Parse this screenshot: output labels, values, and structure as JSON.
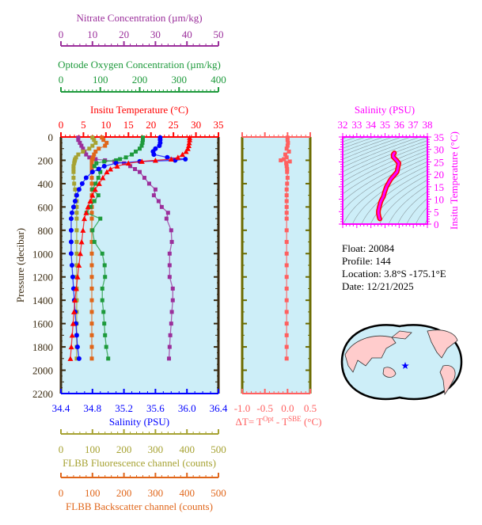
{
  "chart_data": [
    {
      "type": "line",
      "title": "",
      "ylabel": "Pressure (decibar)",
      "ylim": [
        2200,
        0
      ],
      "yticks": [
        0,
        200,
        400,
        600,
        800,
        1000,
        1200,
        1400,
        1600,
        1800,
        2000,
        2200
      ],
      "pressure": [
        5,
        25,
        50,
        75,
        100,
        125,
        150,
        175,
        190,
        200,
        210,
        225,
        250,
        275,
        300,
        350,
        400,
        450,
        500,
        550,
        600,
        650,
        700,
        800,
        900,
        1000,
        1100,
        1200,
        1300,
        1400,
        1500,
        1600,
        1700,
        1800,
        1900
      ],
      "axes": {
        "temperature": {
          "label": "Insitu Temperature (°C)",
          "range": [
            0,
            35
          ],
          "ticks": [
            0,
            5,
            10,
            15,
            20,
            25,
            30,
            35
          ],
          "color": "#ff0000"
        },
        "salinity": {
          "label": "Salinity (PSU)",
          "range": [
            34.4,
            36.4
          ],
          "ticks": [
            "34.4",
            "34.8",
            "35.2",
            "35.6",
            "36.0",
            "36.4"
          ],
          "color": "#0000ff"
        },
        "oxygen": {
          "label": "Optode Oxygen Concentration (µm/kg)",
          "range": [
            0,
            400
          ],
          "ticks": [
            0,
            100,
            200,
            300,
            400
          ],
          "color": "#1e9a3c"
        },
        "nitrate": {
          "label": "Nitrate Concentration (µm/kg)",
          "range": [
            0,
            50
          ],
          "ticks": [
            0,
            10,
            20,
            30,
            40,
            50
          ],
          "color": "#9b2f9b"
        },
        "fluorescence": {
          "label": "FLBB Fluorescence channel (counts)",
          "range": [
            0,
            500
          ],
          "ticks": [
            0,
            100,
            200,
            300,
            400,
            500
          ],
          "color": "#a6a232"
        },
        "backscatter": {
          "label": "FLBB Backscatter channel (counts)",
          "range": [
            0,
            500
          ],
          "ticks": [
            0,
            100,
            200,
            300,
            400,
            500
          ],
          "color": "#e0661a"
        }
      },
      "series": {
        "temperature": [
          28.6,
          28.6,
          28.5,
          28.4,
          28.2,
          27.8,
          27,
          26,
          24.5,
          21,
          18,
          15,
          12.5,
          11,
          10.2,
          9.3,
          8.5,
          7.6,
          7,
          6.5,
          6,
          5.6,
          5.2,
          4.9,
          4.6,
          4.3,
          4,
          3.7,
          3.4,
          3.1,
          2.9,
          2.7,
          2.5,
          2.3,
          2.1
        ],
        "salinity": [
          35.66,
          35.66,
          35.66,
          35.65,
          35.6,
          35.57,
          35.58,
          35.75,
          35.98,
          35.85,
          35.4,
          35.1,
          34.95,
          34.88,
          34.8,
          34.72,
          34.67,
          34.63,
          34.6,
          34.58,
          34.56,
          34.54,
          34.53,
          34.53,
          34.53,
          34.53,
          34.54,
          34.55,
          34.56,
          34.57,
          34.58,
          34.59,
          34.6,
          34.61,
          34.63
        ],
        "oxygen": [
          208,
          208,
          207,
          205,
          200,
          190,
          180,
          165,
          150,
          140,
          110,
          90,
          85,
          95,
          100,
          95,
          88,
          80,
          95,
          85,
          75,
          65,
          100,
          80,
          85,
          105,
          111,
          112,
          105,
          105,
          108,
          110,
          112,
          115,
          120
        ],
        "nitrate": [
          5.5,
          5.5,
          6,
          6.5,
          7,
          7.5,
          8,
          9,
          11,
          14,
          17,
          20,
          22,
          23.5,
          25,
          26.5,
          28,
          30,
          29.5,
          31,
          32,
          34,
          33.5,
          35,
          35.2,
          34.5,
          34.5,
          34.5,
          35.5,
          35.5,
          35.2,
          35,
          34.7,
          34.5,
          34.3
        ],
        "fluorescence": [
          100,
          105,
          110,
          100,
          90,
          70,
          55,
          48,
          45,
          44,
          43,
          42,
          40,
          40,
          40,
          40,
          42,
          45,
          48,
          50,
          50,
          50,
          50,
          50,
          50,
          50,
          50,
          50,
          50,
          50,
          50,
          50,
          50,
          50,
          50
        ],
        "backscatter": [
          130,
          135,
          145,
          140,
          120,
          110,
          105,
          102,
          100,
          98,
          98,
          98,
          98,
          98,
          98,
          98,
          98,
          98,
          98,
          98,
          98,
          98,
          98,
          98,
          98,
          98,
          98,
          98,
          98,
          98,
          98,
          98,
          98,
          98,
          98
        ]
      }
    },
    {
      "type": "line",
      "xlabel_parts": {
        "prefix": "ΔT= T",
        "sup1": "Opt",
        "mid": " - T",
        "sup2": "SBE",
        "suffix": " (°C)"
      },
      "xlim": [
        -1.0,
        0.5
      ],
      "xticks": [
        "-1.0",
        "-0.5",
        "0.0",
        "0.5"
      ],
      "color": "#ff6060",
      "delta_t": [
        0,
        0,
        0.01,
        0,
        -0.02,
        0.03,
        -0.05,
        -0.02,
        -0.08,
        -0.15,
        0.05,
        -0.03,
        -0.02,
        -0.01,
        -0.01,
        0,
        -0.01,
        -0.02,
        -0.02,
        -0.02,
        -0.02,
        -0.02,
        -0.02,
        -0.02,
        -0.02,
        -0.02,
        -0.02,
        -0.02,
        -0.02,
        -0.02,
        -0.02,
        -0.02,
        -0.02,
        -0.02,
        -0.02
      ]
    },
    {
      "type": "scatter",
      "xlabel": "Salinity (PSU)",
      "ylabel": "Insitu Temperature (°C)",
      "xlim": [
        32,
        38
      ],
      "ylim": [
        0,
        35
      ],
      "xticks": [
        32,
        33,
        34,
        35,
        36,
        37,
        38
      ],
      "yticks": [
        0,
        5,
        10,
        15,
        20,
        25,
        30,
        35
      ],
      "color": "#ff00ff",
      "note": "T-S diagram of the same profile with density contours"
    }
  ],
  "info": {
    "float": "Float:  20084",
    "profile": "Profile:  144",
    "location": "Location:  3.8°S  -175.1°E",
    "date": "Date:  12/21/2025"
  },
  "map": {
    "marker": "star",
    "marker_color": "#0000ff",
    "land_color": "#ffcccc",
    "ocean_color": "#cdeef8"
  },
  "colors": {
    "plot_bg": "#cdeef8",
    "frame": "#3a2a10",
    "delta_frame": "#6b6b00"
  }
}
